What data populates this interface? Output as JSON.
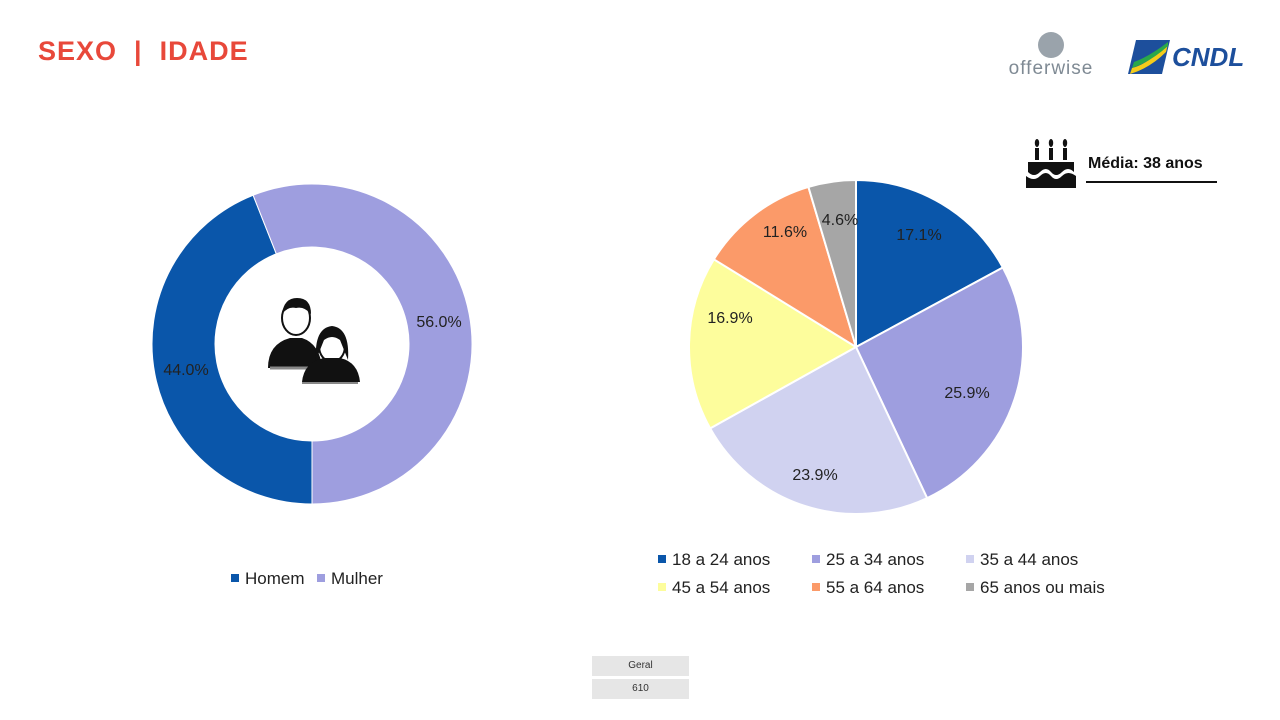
{
  "header": {
    "title": "SEXO  |  IDADE"
  },
  "logos": {
    "offerwise": "offerwise",
    "cndl": "CNDL"
  },
  "media": {
    "label": "Média: 38 anos",
    "icon": "birthday-cake-icon"
  },
  "base": {
    "header": "Geral",
    "value": "610"
  },
  "colors": {
    "homem": "#0a56aa",
    "mulher": "#9e9edf",
    "age_18_24": "#0a56aa",
    "age_25_34": "#9e9edf",
    "age_35_44": "#d0d2f0",
    "age_45_54": "#fdfd9c",
    "age_55_64": "#fb9a69",
    "age_65_plus": "#a6a6a6",
    "title": "#e8483a"
  },
  "chart_data": [
    {
      "type": "pie",
      "variant": "donut",
      "categories": [
        "Homem",
        "Mulher"
      ],
      "values": [
        44.0,
        56.0
      ],
      "data_labels": [
        "44.0%",
        "56.0%"
      ],
      "legend_position": "bottom",
      "center_icon": "couple-icon"
    },
    {
      "type": "pie",
      "categories": [
        "18 a 24 anos",
        "25 a 34 anos",
        "35 a 44 anos",
        "45 a 54 anos",
        "55 a 64 anos",
        "65 anos ou mais"
      ],
      "values": [
        17.1,
        25.9,
        23.9,
        16.9,
        11.6,
        4.6
      ],
      "data_labels": [
        "17.1%",
        "25.9%",
        "23.9%",
        "16.9%",
        "11.6%",
        "4.6%"
      ],
      "legend_position": "bottom"
    }
  ]
}
